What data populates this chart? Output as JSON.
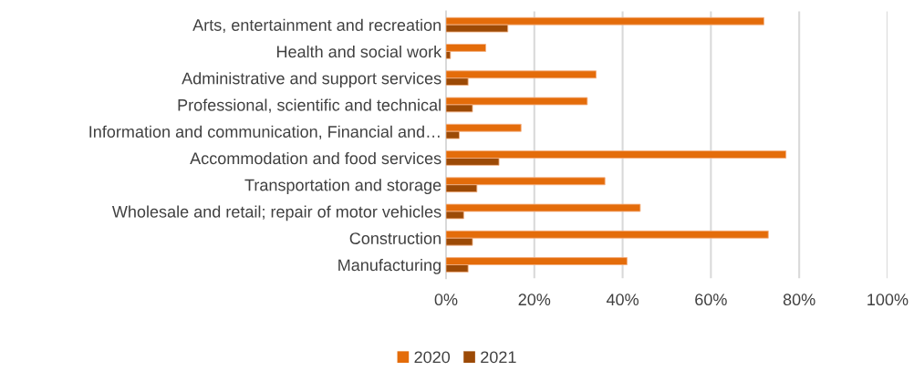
{
  "chart_data": {
    "type": "bar",
    "orientation": "horizontal",
    "categories": [
      "Arts, entertainment and recreation",
      "Health and social work",
      "Administrative and support services",
      "Professional, scientific and technical",
      "Information and communication, Financial and…",
      "Accommodation and food services",
      "Transportation and storage",
      "Wholesale and retail; repair of motor vehicles",
      "Construction",
      "Manufacturing"
    ],
    "series": [
      {
        "name": "2020",
        "color": "#e46c0a",
        "values": [
          72,
          9,
          34,
          32,
          17,
          77,
          36,
          44,
          73,
          41
        ]
      },
      {
        "name": "2021",
        "color": "#9c4a06",
        "values": [
          14,
          1,
          5,
          6,
          3,
          12,
          7,
          4,
          6,
          5
        ]
      }
    ],
    "xlim": [
      0,
      100
    ],
    "xticks": [
      {
        "value": 0,
        "label": "0%"
      },
      {
        "value": 20,
        "label": "20%"
      },
      {
        "value": 40,
        "label": "40%"
      },
      {
        "value": 60,
        "label": "60%"
      },
      {
        "value": 80,
        "label": "80%"
      },
      {
        "value": 100,
        "label": "100%"
      }
    ],
    "grid": "x",
    "legend": "bottom"
  }
}
